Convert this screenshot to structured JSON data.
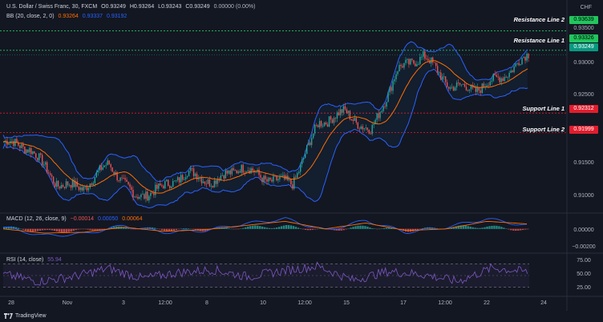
{
  "header": {
    "symbol": "U.S. Dollar / Swiss Franc, 30, FXCM",
    "ohlc": [
      "O0.93249",
      "H0.93264",
      "L0.93243",
      "C0.93249",
      "0.00000 (0.00%)"
    ],
    "bb_title": "BB (20, close, 2, 0)",
    "bb_values": [
      "0.93264",
      "0.93337",
      "0.93192"
    ],
    "macd_title": "MACD (12, 26, close, 9)",
    "macd_values": [
      "−0.00014",
      "0.00050",
      "0.00064"
    ],
    "rsi_title": "RSI (14, close)",
    "rsi_value": "55.94"
  },
  "currency": "CHF",
  "price_axis": [
    "0.93500",
    "0.93000",
    "0.92500",
    "0.91500",
    "0.91000"
  ],
  "macd_axis": [
    "0.00000",
    "−0.00200"
  ],
  "rsi_axis": [
    "75.00",
    "50.00",
    "25.00"
  ],
  "levels": {
    "resistance2": {
      "label": "Resistance Line 2",
      "price": "0.93639",
      "color": "#22c55e"
    },
    "resistance1": {
      "label": "Resistance Line 1",
      "price": "0.93326",
      "color": "#22c55e"
    },
    "last": {
      "price": "0.93249",
      "color": "#089981"
    },
    "support1": {
      "label": "Support Line 1",
      "price": "0.92312",
      "color": "#e11d2d"
    },
    "support2": {
      "label": "Support Line 2",
      "price": "0.91999",
      "color": "#e11d2d"
    }
  },
  "time_axis": [
    "28",
    "Nov",
    "3",
    "12:00",
    "8",
    "10",
    "12:00",
    "15",
    "17",
    "12:00",
    "22",
    "24"
  ],
  "brand": "TradingView",
  "colors": {
    "background": "#131722",
    "up_candle": "#26a69a",
    "down_candle": "#ef5350",
    "bb_band": "#2962ff",
    "bb_basis": "#ff6d00",
    "macd_line": "#2962ff",
    "signal_line": "#ff6d00",
    "rsi_line": "#7e57c2"
  },
  "chart_data": [
    {
      "type": "candlestick",
      "title": "U.S. Dollar / Swiss Franc, 30, FXCM",
      "x": [
        "28",
        "Nov",
        "3",
        "12:00",
        "8",
        "10",
        "12:00",
        "15",
        "17",
        "12:00",
        "22",
        "24"
      ],
      "ylim": [
        0.9075,
        0.9375
      ],
      "close_path": [
        {
          "x": "28",
          "y": 0.9185
        },
        {
          "x": "29",
          "y": 0.9175
        },
        {
          "x": "30",
          "y": 0.9118
        },
        {
          "x": "31",
          "y": 0.911
        },
        {
          "x": "Nov",
          "y": 0.915
        },
        {
          "x": "2",
          "y": 0.9095
        },
        {
          "x": "3",
          "y": 0.911
        },
        {
          "x": "12:00",
          "y": 0.9135
        },
        {
          "x": "7",
          "y": 0.912
        },
        {
          "x": "8",
          "y": 0.9145
        },
        {
          "x": "9",
          "y": 0.9125
        },
        {
          "x": "10",
          "y": 0.9118
        },
        {
          "x": "12:00",
          "y": 0.9215
        },
        {
          "x": "14",
          "y": 0.9233
        },
        {
          "x": "15",
          "y": 0.92
        },
        {
          "x": "16",
          "y": 0.93
        },
        {
          "x": "17",
          "y": 0.9325
        },
        {
          "x": "12:00",
          "y": 0.9275
        },
        {
          "x": "21",
          "y": 0.927
        },
        {
          "x": "22",
          "y": 0.929
        },
        {
          "x": "23",
          "y": 0.9325
        }
      ],
      "overlays": [
        "Bollinger Bands (20, close, 2, 0)"
      ],
      "levels": [
        {
          "name": "Resistance Line 2",
          "value": 0.93639
        },
        {
          "name": "Resistance Line 1",
          "value": 0.93326
        },
        {
          "name": "Support Line 1",
          "value": 0.92312
        },
        {
          "name": "Support Line 2",
          "value": 0.91999
        }
      ],
      "last_price": 0.93249
    },
    {
      "type": "line",
      "title": "MACD (12, 26, close, 9)",
      "ylim": [
        -0.0025,
        0.0015
      ],
      "series": [
        {
          "name": "MACD",
          "values": [
            0.0002,
            -0.0008,
            -0.0006,
            0.0004,
            -0.0004,
            -0.0002,
            0.0006,
            0.0012,
            -0.0002,
            0.001,
            -0.0004,
            0.0002,
            0.0012,
            0.0004
          ]
        },
        {
          "name": "Signal",
          "values": [
            0.0,
            -0.0005,
            -0.0004,
            0.0002,
            -0.0003,
            -0.0001,
            0.0004,
            0.0009,
            0.0,
            0.0007,
            -0.0002,
            0.0,
            0.0009,
            0.0006
          ]
        }
      ]
    },
    {
      "type": "line",
      "title": "RSI (14, close)",
      "ylim": [
        20,
        80
      ],
      "bands": [
        30,
        70
      ],
      "series": [
        {
          "name": "RSI",
          "values": [
            52,
            40,
            48,
            62,
            45,
            55,
            60,
            48,
            58,
            66,
            42,
            57,
            52,
            40,
            63,
            56
          ]
        }
      ]
    }
  ]
}
